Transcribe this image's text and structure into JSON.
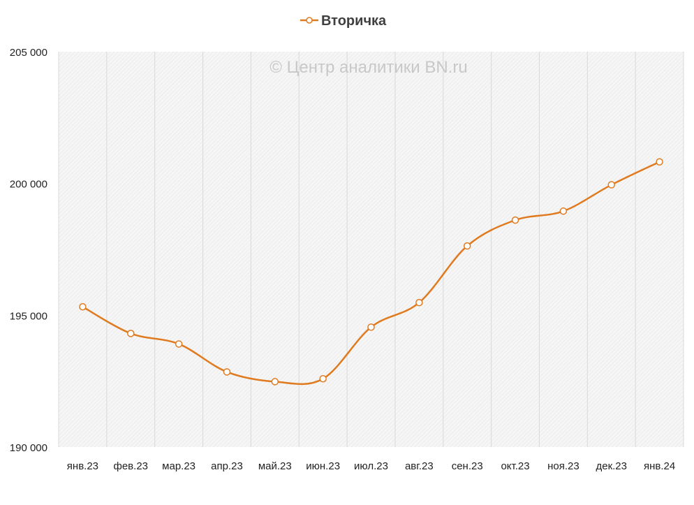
{
  "chart_data": {
    "type": "line",
    "title": "",
    "legend": {
      "entries": [
        "Вторичка"
      ],
      "placement": "top-center"
    },
    "watermark": "© Центр аналитики BN.ru",
    "categories": [
      "янв.23",
      "фев.23",
      "мар.23",
      "апр.23",
      "май.23",
      "июн.23",
      "июл.23",
      "авг.23",
      "сен.23",
      "окт.23",
      "ноя.23",
      "дек.23",
      "янв.24"
    ],
    "series": [
      {
        "name": "Вторичка",
        "color": "#E07A1F",
        "values": [
          195320,
          194310,
          193910,
          192850,
          192480,
          192590,
          194550,
          195480,
          197630,
          198610,
          198950,
          199950,
          200820
        ]
      }
    ],
    "ylim": [
      190000,
      205000
    ],
    "yticks": [
      190000,
      195000,
      200000,
      205000
    ],
    "ytick_labels": [
      "190 000",
      "195 000",
      "200 000",
      "205 000"
    ],
    "xlabel": "",
    "ylabel": "",
    "grid": "vertical"
  }
}
